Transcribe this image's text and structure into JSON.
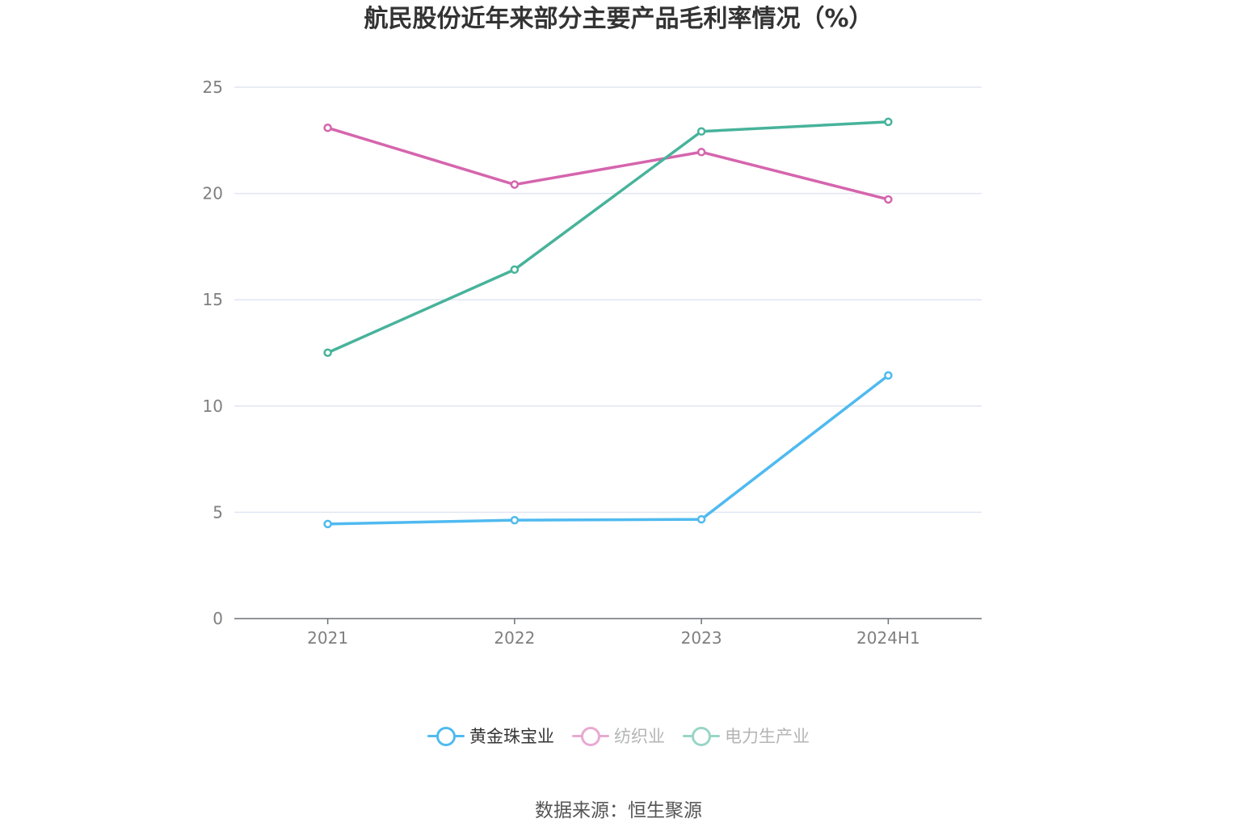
{
  "title": "航民股份近年来部分主要产品毛利率情况（%）",
  "source": "数据来源：恒生聚源",
  "chart_data": {
    "type": "line",
    "categories": [
      "2021",
      "2022",
      "2023",
      "2024H1"
    ],
    "ylim": [
      0,
      25
    ],
    "yticks": [
      0,
      5,
      10,
      15,
      20,
      25
    ],
    "grid": true,
    "legend_position": "bottom",
    "series": [
      {
        "name": "黄金珠宝业",
        "color": "#4fbaf0",
        "values": [
          4.45,
          4.63,
          4.67,
          11.44
        ],
        "active": true
      },
      {
        "name": "纺织业",
        "color": "#d565ad",
        "values": [
          23.09,
          20.42,
          21.95,
          19.72
        ],
        "active": false
      },
      {
        "name": "电力生产业",
        "color": "#47b39b",
        "values": [
          12.51,
          16.42,
          22.92,
          23.37
        ],
        "active": false
      }
    ]
  }
}
